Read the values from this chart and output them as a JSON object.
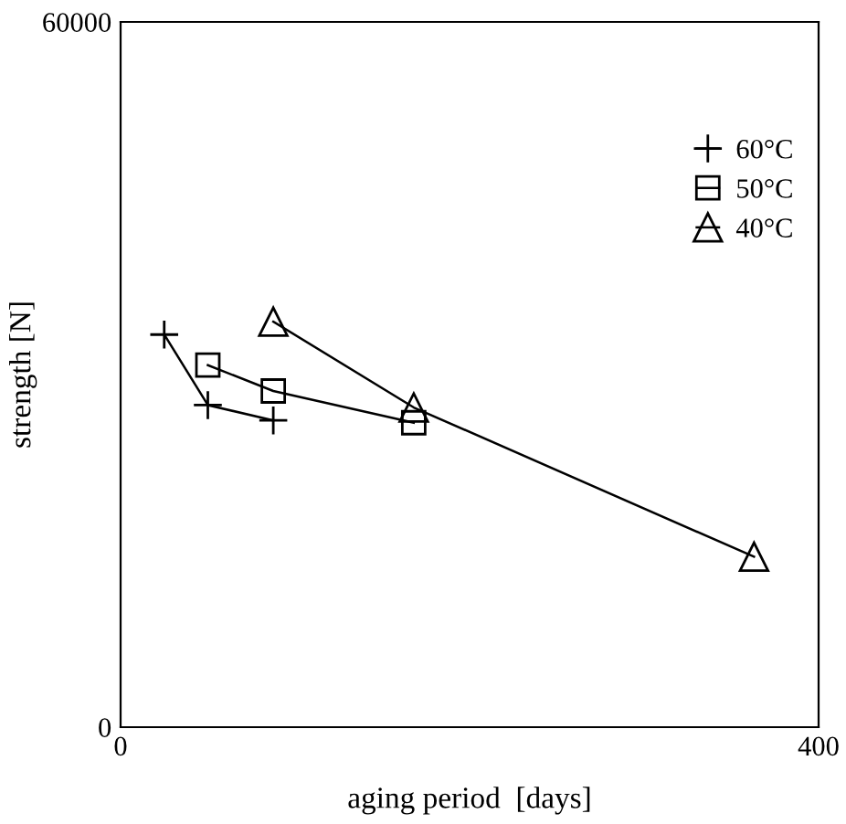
{
  "chart_data": {
    "type": "line",
    "xlabel": "aging period  [days]",
    "ylabel": "strength [N]",
    "xlim": [
      0,
      400
    ],
    "ylim": [
      0,
      60000
    ],
    "xticks": [
      0,
      400
    ],
    "yticks": [
      0,
      60000
    ],
    "grid": false,
    "legend": "top right",
    "series": [
      {
        "name": "60°C",
        "color": "#000000",
        "marker": "cross",
        "x": [
          25,
          50,
          87.5
        ],
        "values": [
          33400,
          27400,
          26100
        ]
      },
      {
        "name": "50°C",
        "color": "#000000",
        "marker": "square",
        "x": [
          50,
          87.5,
          168
        ],
        "values": [
          30800,
          28600,
          25900
        ]
      },
      {
        "name": "40°C",
        "color": "#000000",
        "marker": "triangle",
        "x": [
          87.5,
          168,
          363
        ],
        "values": [
          34500,
          27200,
          14500
        ]
      }
    ]
  }
}
